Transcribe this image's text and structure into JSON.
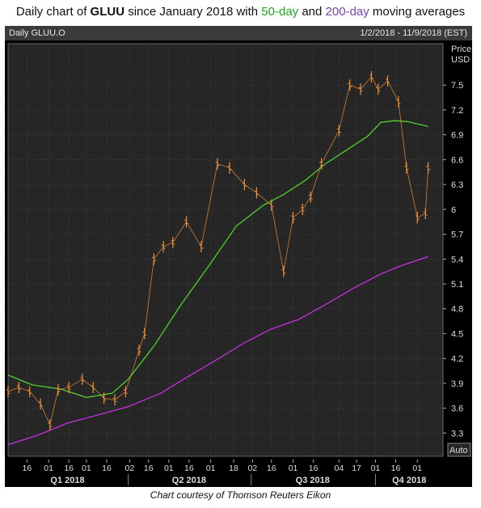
{
  "title": {
    "prefix": "Daily chart of ",
    "ticker": "GLUU",
    "middle": " since January 2018 with ",
    "ma50": "50-day",
    "and": " and ",
    "ma200": "200-day",
    "suffix": " moving averages"
  },
  "header": {
    "left": "Daily GLUU.O",
    "right": "1/2/2018 - 11/9/2018 (EST)"
  },
  "credit": "Chart courtesy of Thomson Reuters Eikon",
  "colors": {
    "price": "#f0923a",
    "ma50": "#4fd12a",
    "ma200": "#c72fe0",
    "background": "#262626",
    "grid": "#4a4a4a",
    "axis_text": "#dddddd"
  },
  "chart_data": {
    "type": "line",
    "title": "Daily chart of GLUU since January 2018 with 50-day and 200-day moving averages",
    "ylabel": "Price USD",
    "ylim": [
      3.02,
      8.0
    ],
    "y_ticks": [
      3.3,
      3.6,
      3.9,
      4.2,
      4.5,
      4.8,
      5.1,
      5.4,
      5.7,
      6,
      6.3,
      6.6,
      6.9,
      7.2,
      7.5
    ],
    "y_axis_label_top": "Price",
    "y_axis_label_unit": "USD",
    "auto_label": "Auto",
    "x_tick_labels": [
      "16",
      "01",
      "16",
      "01",
      "16",
      "02",
      "16",
      "01",
      "16",
      "01",
      "18",
      "02",
      "16",
      "01",
      "16",
      "04",
      "17",
      "01",
      "16",
      "01"
    ],
    "quarters": [
      "Q1 2018",
      "Q2 2018",
      "Q3 2018",
      "Q4 2018"
    ],
    "grid": true,
    "series": [
      {
        "name": "50-day",
        "x": [
          "2018-01-02",
          "2018-01-20",
          "2018-02-10",
          "2018-03-01",
          "2018-03-20",
          "2018-04-01",
          "2018-04-20",
          "2018-05-10",
          "2018-06-01",
          "2018-06-20",
          "2018-07-10",
          "2018-07-25",
          "2018-08-10",
          "2018-08-25",
          "2018-09-10",
          "2018-09-25",
          "2018-10-05",
          "2018-10-15",
          "2018-10-25",
          "2018-11-09"
        ],
        "values": [
          4.0,
          3.88,
          3.83,
          3.73,
          3.78,
          3.95,
          4.35,
          4.85,
          5.35,
          5.8,
          6.05,
          6.18,
          6.35,
          6.55,
          6.72,
          6.88,
          7.05,
          7.07,
          7.06,
          7.0
        ]
      },
      {
        "name": "200-day",
        "x": [
          "2018-01-02",
          "2018-01-25",
          "2018-02-15",
          "2018-03-10",
          "2018-04-01",
          "2018-04-25",
          "2018-05-15",
          "2018-06-05",
          "2018-06-25",
          "2018-07-15",
          "2018-08-05",
          "2018-08-25",
          "2018-09-15",
          "2018-10-05",
          "2018-10-20",
          "2018-11-09"
        ],
        "values": [
          3.16,
          3.28,
          3.42,
          3.52,
          3.62,
          3.78,
          3.98,
          4.18,
          4.38,
          4.55,
          4.67,
          4.85,
          5.05,
          5.22,
          5.32,
          5.43
        ]
      },
      {
        "name": "Price",
        "x": [
          "2018-01-02",
          "2018-01-10",
          "2018-01-18",
          "2018-01-26",
          "2018-02-02",
          "2018-02-08",
          "2018-02-16",
          "2018-02-26",
          "2018-03-06",
          "2018-03-14",
          "2018-03-22",
          "2018-03-30",
          "2018-04-09",
          "2018-04-13",
          "2018-04-20",
          "2018-04-27",
          "2018-05-04",
          "2018-05-14",
          "2018-05-25",
          "2018-06-06",
          "2018-06-15",
          "2018-06-26",
          "2018-07-05",
          "2018-07-16",
          "2018-07-25",
          "2018-08-01",
          "2018-08-08",
          "2018-08-14",
          "2018-08-22",
          "2018-09-04",
          "2018-09-12",
          "2018-09-20",
          "2018-09-28",
          "2018-10-03",
          "2018-10-10",
          "2018-10-18",
          "2018-10-24",
          "2018-11-01",
          "2018-11-07",
          "2018-11-09"
        ],
        "values": [
          3.8,
          3.85,
          3.8,
          3.65,
          3.4,
          3.82,
          3.85,
          3.95,
          3.85,
          3.72,
          3.7,
          3.8,
          4.3,
          4.5,
          5.4,
          5.55,
          5.6,
          5.85,
          5.55,
          6.55,
          6.5,
          6.3,
          6.2,
          6.05,
          5.25,
          5.9,
          6.0,
          6.15,
          6.55,
          6.95,
          7.5,
          7.45,
          7.6,
          7.45,
          7.55,
          7.3,
          6.5,
          5.9,
          5.95,
          6.5
        ]
      }
    ]
  }
}
